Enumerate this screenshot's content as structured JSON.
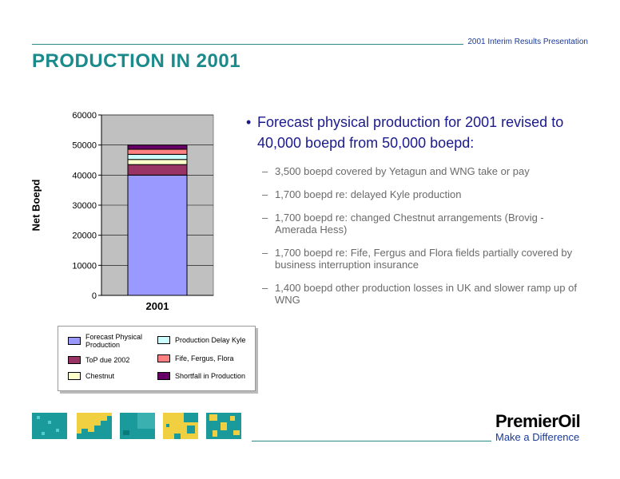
{
  "header": {
    "presentation_title": "2001 Interim Results Presentation"
  },
  "slide": {
    "title": "PRODUCTION IN 2001"
  },
  "chart_data": {
    "type": "bar",
    "stacked": true,
    "categories": [
      "2001"
    ],
    "ylabel": "Net Boepd",
    "ylim": [
      0,
      60000
    ],
    "yticks": [
      0,
      10000,
      20000,
      30000,
      40000,
      50000,
      60000
    ],
    "grid": true,
    "legend_position": "bottom",
    "series": [
      {
        "name": "Forecast Physical Production",
        "values": [
          40000
        ],
        "color": "#9999ff"
      },
      {
        "name": "ToP due 2002",
        "values": [
          3500
        ],
        "color": "#993366"
      },
      {
        "name": "Chestnut",
        "values": [
          1700
        ],
        "color": "#ffffcc"
      },
      {
        "name": "Production Delay Kyle",
        "values": [
          1700
        ],
        "color": "#ccffff"
      },
      {
        "name": "Fife, Fergus, Flora",
        "values": [
          1700
        ],
        "color": "#ff8080"
      },
      {
        "name": "Shortfall in Production",
        "values": [
          1400
        ],
        "color": "#660066"
      }
    ]
  },
  "legend": {
    "items": [
      {
        "label": "Forecast Physical Production",
        "color": "#9999ff"
      },
      {
        "label": "Production Delay Kyle",
        "color": "#ccffff"
      },
      {
        "label": "ToP due 2002",
        "color": "#993366"
      },
      {
        "label": "Fife, Fergus, Flora",
        "color": "#ff8080"
      },
      {
        "label": "Chestnut",
        "color": "#ffffcc"
      },
      {
        "label": "Shortfall in Production",
        "color": "#660066"
      }
    ]
  },
  "bullets": {
    "main": "Forecast physical production for 2001 revised to 40,000 boepd from 50,000 boepd:",
    "sub": [
      "3,500 boepd covered by Yetagun and WNG take or pay",
      "1,700 boepd re: delayed Kyle production",
      "1,700 boepd re: changed Chestnut arrangements (Brovig - Amerada Hess)",
      "1,700 boepd re: Fife, Fergus and Flora fields partially covered by business interruption insurance",
      "1,400 boepd other production losses in UK and slower ramp up of WNG"
    ]
  },
  "footer": {
    "logo": "PremierOil",
    "tagline": "Make a Difference"
  },
  "colors": {
    "teal": "#1a8a8a",
    "navy": "#1a1a8a",
    "plot_bg": "#c0c0c0"
  }
}
